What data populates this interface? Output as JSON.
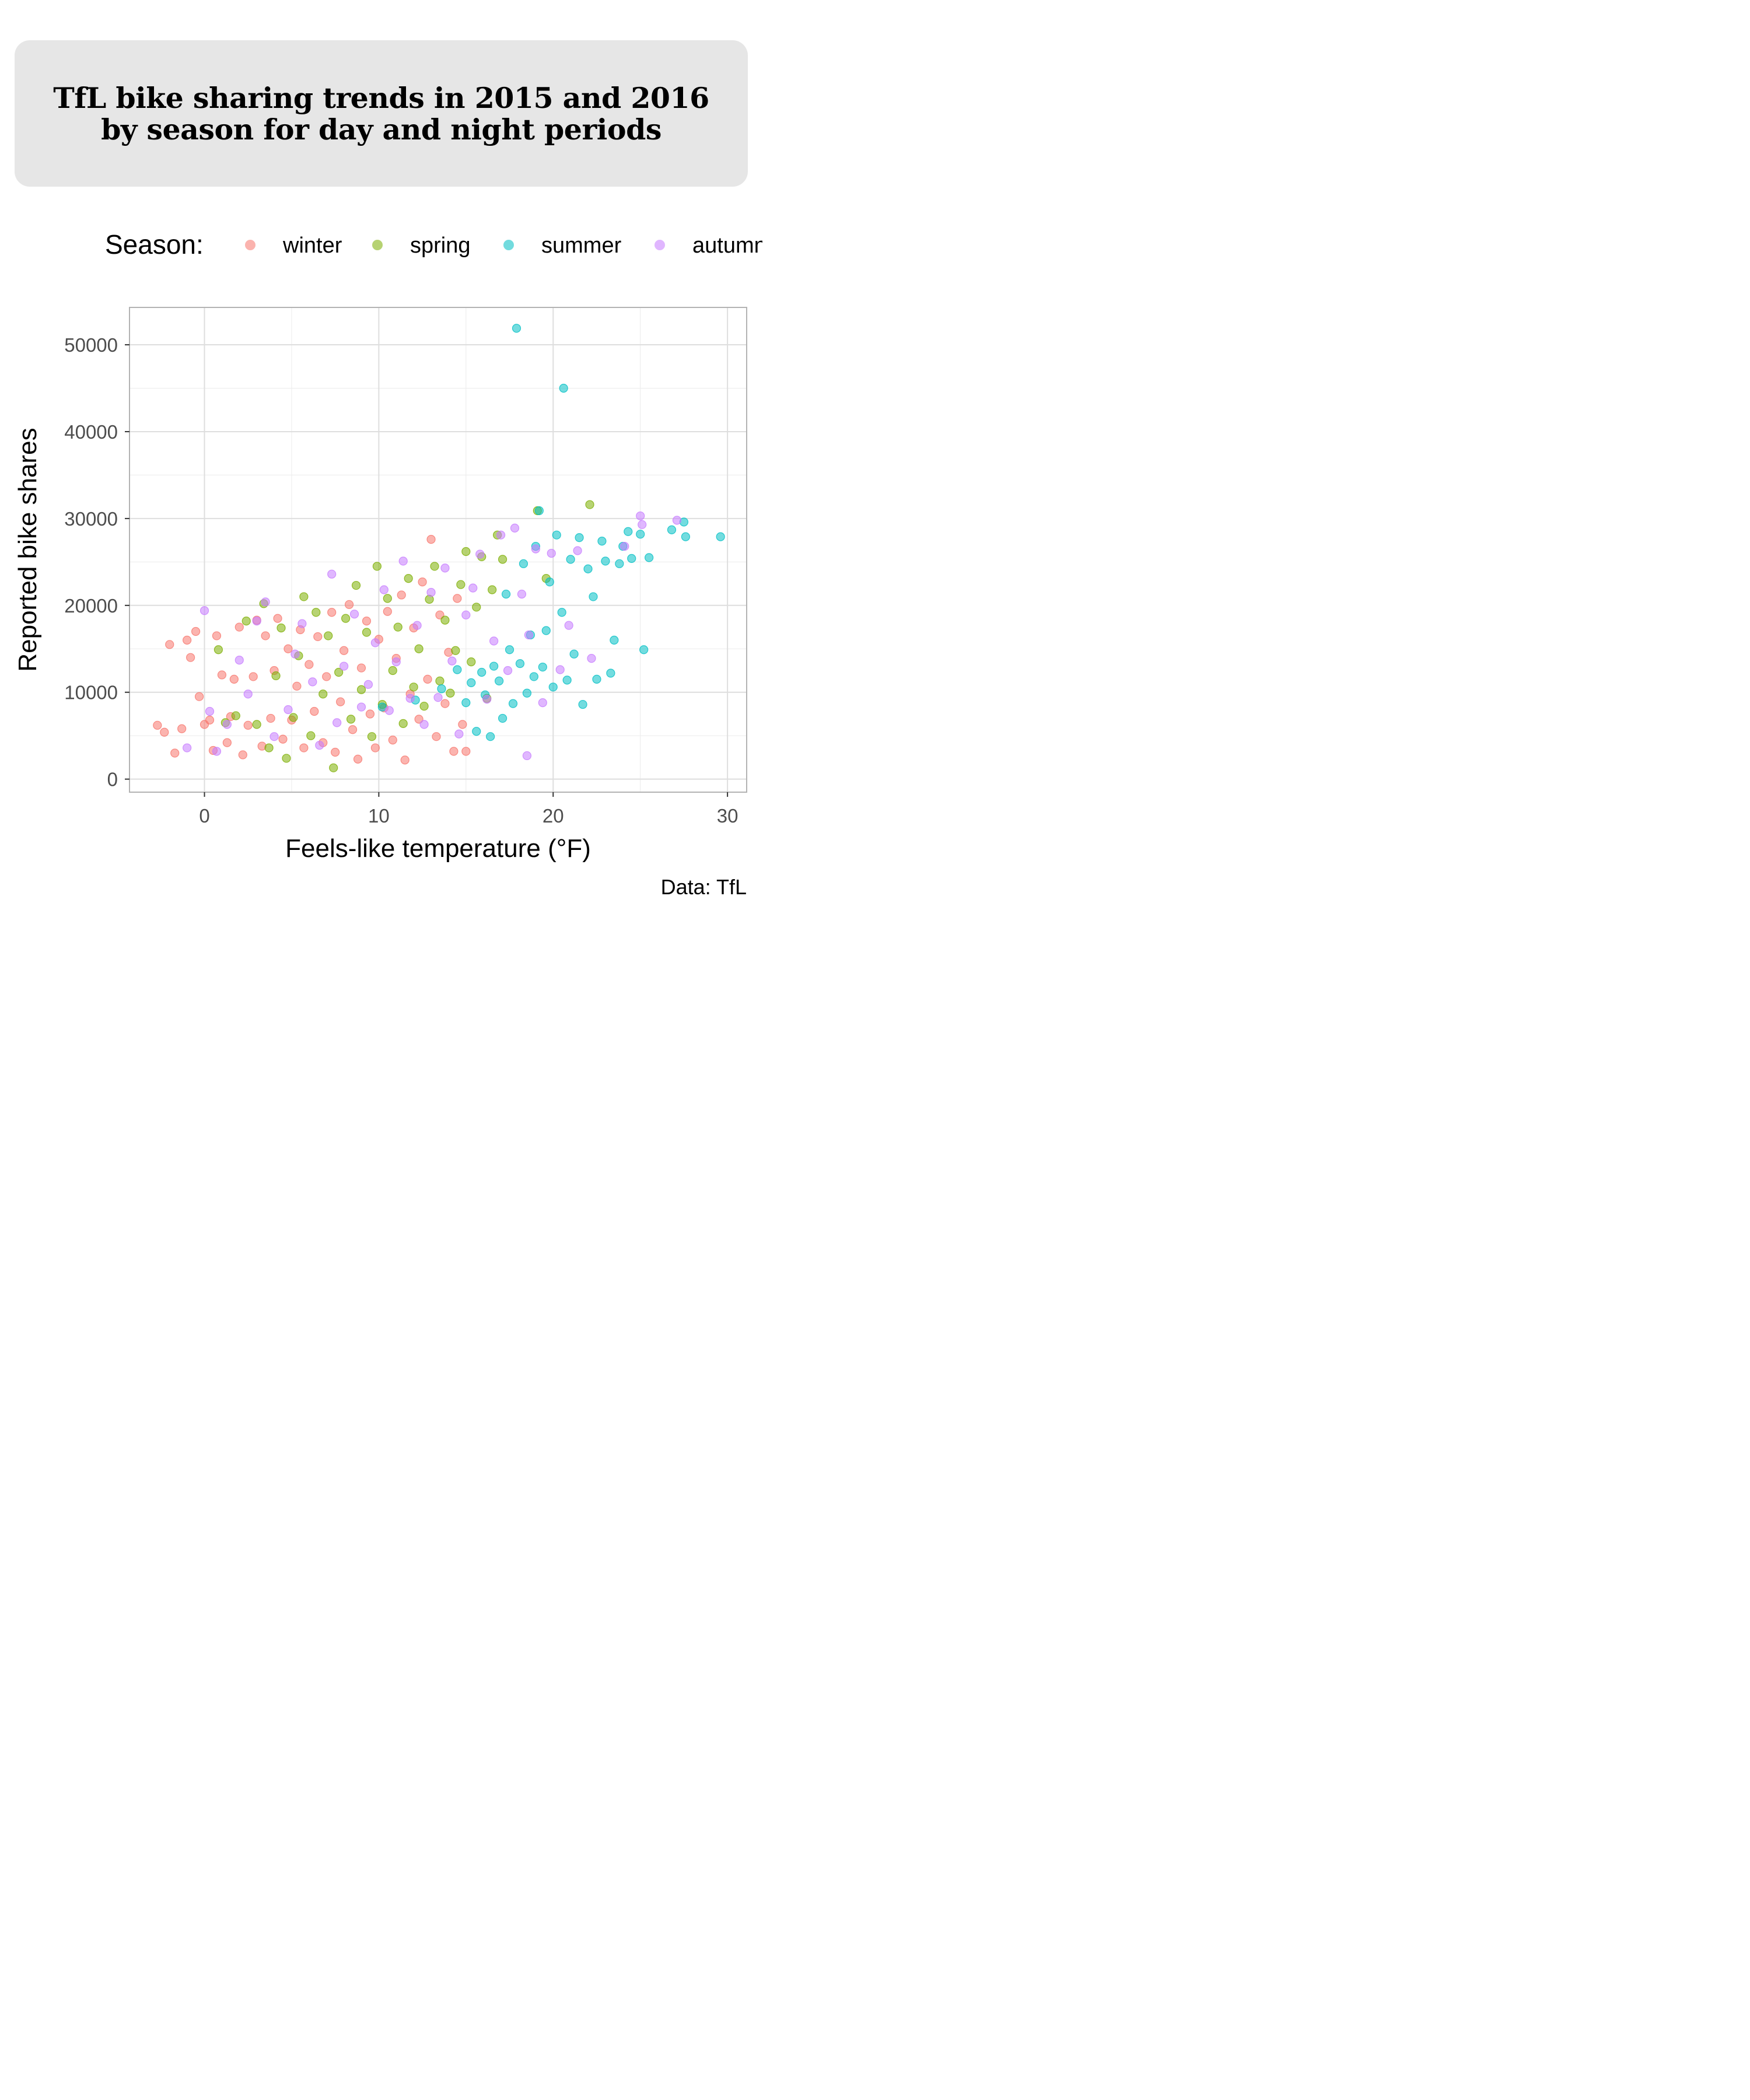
{
  "title": "TfL bike sharing trends in 2015 and 2016 by season for day and night periods",
  "legend": {
    "title": "Season:",
    "items": [
      {
        "label": "winter",
        "color": "#F8766D"
      },
      {
        "label": "spring",
        "color": "#7CAE00"
      },
      {
        "label": "summer",
        "color": "#00BFC4"
      },
      {
        "label": "autumn",
        "color": "#C77CFF"
      }
    ]
  },
  "caption": "Data: TfL",
  "chart_data": {
    "type": "scatter",
    "title": "TfL bike sharing trends in 2015 and 2016 by season for day and night periods",
    "xlabel": "Feels-like temperature (°F)",
    "ylabel": "Reported bike shares",
    "xlim": [
      -4.3,
      31.1
    ],
    "ylim": [
      -1500,
      54300
    ],
    "x_ticks": [
      0,
      10,
      20,
      30
    ],
    "y_ticks": [
      0,
      10000,
      20000,
      30000,
      40000,
      50000
    ],
    "grid": true,
    "legend_position": "top",
    "series": [
      {
        "name": "winter",
        "color": "#F8766D",
        "points": [
          [
            -2.7,
            6200
          ],
          [
            -2.3,
            5400
          ],
          [
            -2.0,
            15500
          ],
          [
            -1.7,
            3000
          ],
          [
            -1.3,
            5800
          ],
          [
            -1.0,
            16000
          ],
          [
            -0.8,
            14000
          ],
          [
            -0.5,
            17000
          ],
          [
            -0.3,
            9500
          ],
          [
            0,
            6300
          ],
          [
            0.3,
            6800
          ],
          [
            0.5,
            3300
          ],
          [
            0.7,
            16500
          ],
          [
            1.0,
            12000
          ],
          [
            1.3,
            4200
          ],
          [
            1.5,
            7200
          ],
          [
            1.7,
            11500
          ],
          [
            2.0,
            17500
          ],
          [
            2.2,
            2800
          ],
          [
            2.5,
            6200
          ],
          [
            2.8,
            11800
          ],
          [
            3.0,
            18300
          ],
          [
            3.3,
            3800
          ],
          [
            3.5,
            16500
          ],
          [
            3.8,
            7000
          ],
          [
            4.0,
            12500
          ],
          [
            4.2,
            18500
          ],
          [
            4.5,
            4600
          ],
          [
            4.8,
            15000
          ],
          [
            5.0,
            6800
          ],
          [
            5.3,
            10700
          ],
          [
            5.5,
            17200
          ],
          [
            5.7,
            3600
          ],
          [
            6.0,
            13200
          ],
          [
            6.3,
            7800
          ],
          [
            6.5,
            16400
          ],
          [
            6.8,
            4200
          ],
          [
            7.0,
            11800
          ],
          [
            7.3,
            19200
          ],
          [
            7.5,
            3100
          ],
          [
            7.8,
            8900
          ],
          [
            8.0,
            14800
          ],
          [
            8.3,
            20100
          ],
          [
            8.5,
            5700
          ],
          [
            8.8,
            2300
          ],
          [
            9.0,
            12800
          ],
          [
            9.3,
            18200
          ],
          [
            9.5,
            7500
          ],
          [
            9.8,
            3600
          ],
          [
            10.0,
            16100
          ],
          [
            10.3,
            8200
          ],
          [
            10.5,
            19300
          ],
          [
            10.8,
            4500
          ],
          [
            11.0,
            13900
          ],
          [
            11.3,
            21200
          ],
          [
            11.5,
            2200
          ],
          [
            11.8,
            9800
          ],
          [
            12.0,
            17400
          ],
          [
            12.3,
            6900
          ],
          [
            12.5,
            22700
          ],
          [
            12.8,
            11500
          ],
          [
            13.0,
            27600
          ],
          [
            13.3,
            4900
          ],
          [
            13.5,
            18900
          ],
          [
            13.8,
            8700
          ],
          [
            14.0,
            14600
          ],
          [
            14.3,
            3200
          ],
          [
            14.5,
            20800
          ],
          [
            14.8,
            6300
          ],
          [
            15.0,
            3200
          ]
        ]
      },
      {
        "name": "spring",
        "color": "#7CAE00",
        "points": [
          [
            0.8,
            14900
          ],
          [
            1.2,
            6500
          ],
          [
            1.8,
            7300
          ],
          [
            2.4,
            18200
          ],
          [
            3.0,
            6300
          ],
          [
            3.4,
            20200
          ],
          [
            3.7,
            3600
          ],
          [
            4.1,
            11900
          ],
          [
            4.4,
            17400
          ],
          [
            4.7,
            2400
          ],
          [
            5.1,
            7100
          ],
          [
            5.4,
            14200
          ],
          [
            5.7,
            21000
          ],
          [
            6.1,
            5000
          ],
          [
            6.4,
            19200
          ],
          [
            6.8,
            9800
          ],
          [
            7.1,
            16500
          ],
          [
            7.4,
            1300
          ],
          [
            7.7,
            12300
          ],
          [
            8.1,
            18500
          ],
          [
            8.4,
            6900
          ],
          [
            8.7,
            22300
          ],
          [
            9.0,
            10300
          ],
          [
            9.3,
            16900
          ],
          [
            9.6,
            4900
          ],
          [
            9.9,
            24500
          ],
          [
            10.2,
            8600
          ],
          [
            10.5,
            20800
          ],
          [
            10.8,
            12500
          ],
          [
            11.1,
            17500
          ],
          [
            11.4,
            6400
          ],
          [
            11.7,
            23100
          ],
          [
            12.0,
            10600
          ],
          [
            12.3,
            15000
          ],
          [
            12.6,
            8400
          ],
          [
            12.9,
            20700
          ],
          [
            13.2,
            24500
          ],
          [
            13.5,
            11300
          ],
          [
            13.8,
            18300
          ],
          [
            14.1,
            9900
          ],
          [
            14.4,
            14800
          ],
          [
            14.7,
            22400
          ],
          [
            15.0,
            26200
          ],
          [
            15.3,
            13500
          ],
          [
            15.6,
            19800
          ],
          [
            15.9,
            25600
          ],
          [
            16.2,
            9300
          ],
          [
            16.5,
            21800
          ],
          [
            16.8,
            28100
          ],
          [
            17.1,
            25300
          ],
          [
            19.1,
            30900
          ],
          [
            19.6,
            23100
          ],
          [
            22.1,
            31600
          ]
        ]
      },
      {
        "name": "summer",
        "color": "#00BFC4",
        "points": [
          [
            10.2,
            8300
          ],
          [
            12.1,
            9100
          ],
          [
            13.6,
            10400
          ],
          [
            14.5,
            12600
          ],
          [
            15.0,
            8800
          ],
          [
            15.3,
            11100
          ],
          [
            15.6,
            5500
          ],
          [
            15.9,
            12300
          ],
          [
            16.1,
            9700
          ],
          [
            16.4,
            4900
          ],
          [
            16.6,
            13000
          ],
          [
            16.9,
            11300
          ],
          [
            17.1,
            7000
          ],
          [
            17.3,
            21300
          ],
          [
            17.5,
            14900
          ],
          [
            17.7,
            8700
          ],
          [
            17.9,
            51900
          ],
          [
            18.1,
            13300
          ],
          [
            18.3,
            24800
          ],
          [
            18.5,
            9900
          ],
          [
            18.7,
            16600
          ],
          [
            18.9,
            11800
          ],
          [
            19.0,
            26800
          ],
          [
            19.2,
            30900
          ],
          [
            19.4,
            12900
          ],
          [
            19.6,
            17100
          ],
          [
            19.8,
            22700
          ],
          [
            20.0,
            10600
          ],
          [
            20.2,
            28100
          ],
          [
            20.5,
            19200
          ],
          [
            20.6,
            45000
          ],
          [
            20.8,
            11400
          ],
          [
            21.0,
            25300
          ],
          [
            21.2,
            14400
          ],
          [
            21.5,
            27800
          ],
          [
            21.7,
            8600
          ],
          [
            22.0,
            24200
          ],
          [
            22.3,
            21000
          ],
          [
            22.5,
            11500
          ],
          [
            22.8,
            27400
          ],
          [
            23.0,
            25100
          ],
          [
            23.3,
            12200
          ],
          [
            23.5,
            16000
          ],
          [
            23.8,
            24800
          ],
          [
            24.0,
            26800
          ],
          [
            24.3,
            28500
          ],
          [
            24.5,
            25400
          ],
          [
            25.0,
            28200
          ],
          [
            25.2,
            14900
          ],
          [
            25.5,
            25500
          ],
          [
            26.8,
            28700
          ],
          [
            27.5,
            29600
          ],
          [
            27.6,
            27900
          ],
          [
            29.6,
            27900
          ]
        ]
      },
      {
        "name": "autumn",
        "color": "#C77CFF",
        "points": [
          [
            -1.0,
            3600
          ],
          [
            0.0,
            19400
          ],
          [
            0.3,
            7800
          ],
          [
            0.7,
            3200
          ],
          [
            1.3,
            6300
          ],
          [
            2.0,
            13700
          ],
          [
            2.5,
            9800
          ],
          [
            3.0,
            18200
          ],
          [
            3.5,
            20400
          ],
          [
            4.0,
            4900
          ],
          [
            4.8,
            8000
          ],
          [
            5.2,
            14400
          ],
          [
            5.6,
            17900
          ],
          [
            6.2,
            11200
          ],
          [
            6.6,
            3900
          ],
          [
            7.3,
            23600
          ],
          [
            7.6,
            6500
          ],
          [
            8.0,
            13000
          ],
          [
            8.6,
            19000
          ],
          [
            9.0,
            8300
          ],
          [
            9.4,
            10900
          ],
          [
            9.8,
            15700
          ],
          [
            10.3,
            21800
          ],
          [
            10.6,
            7900
          ],
          [
            11.0,
            13500
          ],
          [
            11.4,
            25100
          ],
          [
            11.8,
            9300
          ],
          [
            12.2,
            17700
          ],
          [
            12.6,
            6300
          ],
          [
            13.0,
            21500
          ],
          [
            13.4,
            9400
          ],
          [
            13.8,
            24300
          ],
          [
            14.2,
            13600
          ],
          [
            14.6,
            5200
          ],
          [
            15.0,
            18900
          ],
          [
            15.4,
            22000
          ],
          [
            15.8,
            25900
          ],
          [
            16.2,
            9200
          ],
          [
            16.6,
            15900
          ],
          [
            17.0,
            28100
          ],
          [
            17.4,
            12500
          ],
          [
            17.8,
            28900
          ],
          [
            18.2,
            21300
          ],
          [
            18.6,
            16600
          ],
          [
            18.5,
            2700
          ],
          [
            19.0,
            26500
          ],
          [
            19.4,
            8800
          ],
          [
            19.9,
            26000
          ],
          [
            20.4,
            12600
          ],
          [
            20.9,
            17700
          ],
          [
            21.4,
            26300
          ],
          [
            22.2,
            13900
          ],
          [
            24.1,
            26800
          ],
          [
            25.0,
            30300
          ],
          [
            25.1,
            29300
          ],
          [
            27.1,
            29800
          ]
        ]
      }
    ]
  }
}
